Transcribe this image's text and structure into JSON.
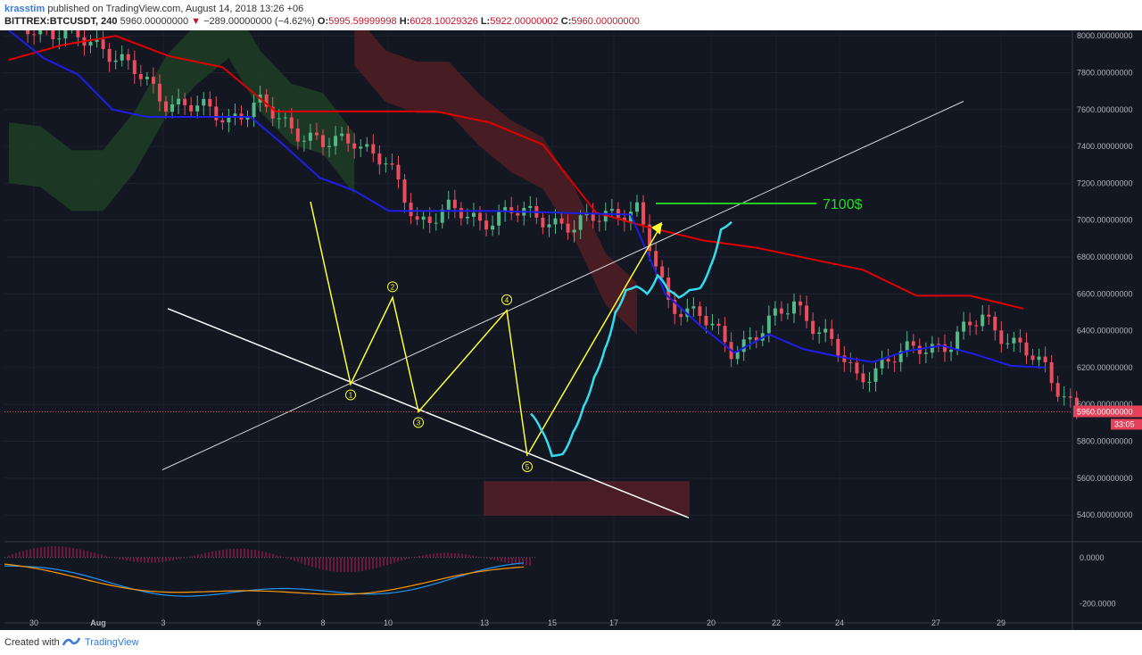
{
  "header": {
    "author": "krasstim",
    "published": "published on TradingView.com, August 14, 2018 13:26 +06",
    "symbol": "BITTREX:BTCUSDT, 240",
    "last": "5960.00000000",
    "change": "−289.00000000 (−4.62%)",
    "open_label": "O:",
    "open": "5995.59999998",
    "high_label": "H:",
    "high": "6028.10029326",
    "low_label": "L:",
    "low": "5922.00000002",
    "close_label": "C:",
    "close": "5960.00000000"
  },
  "footer": {
    "created_with": "Created with",
    "brand": "TradingView"
  },
  "colors": {
    "background": "#131722",
    "grid": "#1e2230",
    "bull": "#53b987",
    "bear": "#eb4d5c",
    "tenkan": "#1e1ee6",
    "kijun": "#e00000",
    "cloud_bull": "#1c3a26",
    "cloud_bear": "#4a1c24",
    "trend": "#ffffff",
    "wave": "#ffff33",
    "projection": "#33ddee",
    "target": "#22cc22",
    "last_price": "#e5415b"
  },
  "chart_data": [
    {
      "type": "candlestick",
      "title": "BITTREX:BTCUSDT, 240",
      "timeframe": "240",
      "ylim": [
        5260,
        8030
      ],
      "y_ticks": [
        "8000.00000000",
        "7800.00000000",
        "7600.00000000",
        "7400.00000000",
        "7200.00000000",
        "7000.00000000",
        "6800.00000000",
        "6600.00000000",
        "6400.00000000",
        "6200.00000000",
        "6000.00000000",
        "5800.00000000",
        "5600.00000000",
        "5400.00000000"
      ],
      "x_ticks": [
        "30",
        "Aug",
        "3",
        "6",
        "8",
        "10",
        "13",
        "15",
        "17",
        "20",
        "22",
        "24",
        "27",
        "29"
      ],
      "last_price_label": "5960.00000000",
      "countdown_label": "33:05",
      "close_path": [
        [
          0,
          8080
        ],
        [
          3,
          7950
        ],
        [
          5,
          7650
        ],
        [
          7,
          7560
        ],
        [
          8,
          7620
        ],
        [
          10,
          7400
        ],
        [
          11,
          7450
        ],
        [
          12,
          7300
        ],
        [
          13,
          7000
        ],
        [
          14,
          7050
        ],
        [
          15,
          7000
        ],
        [
          16,
          7040
        ],
        [
          17,
          7020
        ],
        [
          18,
          6950
        ],
        [
          19,
          7050
        ],
        [
          20,
          7040
        ],
        [
          21,
          6560
        ],
        [
          22,
          6480
        ],
        [
          23,
          6300
        ],
        [
          24,
          6400
        ],
        [
          25,
          6560
        ],
        [
          26,
          6360
        ],
        [
          27,
          6150
        ],
        [
          28,
          6230
        ],
        [
          29,
          6320
        ],
        [
          30,
          6320
        ],
        [
          31,
          6490
        ],
        [
          32,
          6320
        ],
        [
          33,
          6200
        ],
        [
          34,
          5960
        ]
      ],
      "tenkan_sen": [
        [
          0,
          8030
        ],
        [
          1,
          7880
        ],
        [
          2,
          7790
        ],
        [
          3,
          7600
        ],
        [
          4,
          7560
        ],
        [
          6,
          7560
        ],
        [
          7,
          7560
        ],
        [
          8,
          7400
        ],
        [
          9,
          7230
        ],
        [
          10,
          7160
        ],
        [
          11,
          7050
        ],
        [
          12,
          7050
        ],
        [
          14,
          7050
        ],
        [
          16,
          7040
        ],
        [
          18,
          7030
        ],
        [
          19,
          6600
        ],
        [
          20,
          6430
        ],
        [
          21,
          6280
        ],
        [
          22,
          6380
        ],
        [
          23,
          6300
        ],
        [
          24,
          6260
        ],
        [
          25,
          6230
        ],
        [
          26,
          6290
        ],
        [
          27,
          6320
        ],
        [
          28,
          6270
        ],
        [
          29,
          6210
        ],
        [
          30,
          6200
        ]
      ],
      "kijun_sen": [
        [
          0,
          7870
        ],
        [
          1,
          7950
        ],
        [
          2,
          8000
        ],
        [
          3,
          7890
        ],
        [
          4,
          7830
        ],
        [
          5,
          7590
        ],
        [
          6,
          7590
        ],
        [
          7,
          7590
        ],
        [
          8,
          7590
        ],
        [
          9,
          7530
        ],
        [
          10,
          7410
        ],
        [
          11,
          7040
        ],
        [
          12,
          6960
        ],
        [
          13,
          6890
        ],
        [
          14,
          6850
        ],
        [
          15,
          6790
        ],
        [
          16,
          6730
        ],
        [
          17,
          6590
        ],
        [
          18,
          6590
        ],
        [
          19,
          6520
        ]
      ],
      "cloud_bull": [
        [
          0,
          7200
        ],
        [
          1,
          7180
        ],
        [
          2,
          7050
        ],
        [
          3,
          7050
        ],
        [
          4,
          7260
        ],
        [
          5,
          7560
        ],
        [
          6,
          7740
        ],
        [
          7,
          7880
        ],
        [
          8,
          7590
        ],
        [
          9,
          7410
        ],
        [
          10,
          7360
        ],
        [
          11,
          7140
        ]
      ],
      "cloud_bear": [
        [
          11,
          7840
        ],
        [
          12,
          7640
        ],
        [
          13,
          7580
        ],
        [
          14,
          7580
        ],
        [
          15,
          7400
        ],
        [
          16,
          7260
        ],
        [
          17,
          7170
        ],
        [
          18,
          6900
        ],
        [
          19,
          6540
        ],
        [
          20,
          6380
        ]
      ],
      "elliott_waves": [
        {
          "label": "1",
          "value": 6110
        },
        {
          "label": "2",
          "value": 6580
        },
        {
          "label": "3",
          "value": 5960
        },
        {
          "label": "4",
          "value": 6510
        },
        {
          "label": "5",
          "value": 5720
        }
      ],
      "projection": [
        5950,
        5860,
        5720,
        5730,
        5850,
        5990,
        6150,
        6300,
        6500,
        6620,
        6640,
        6600,
        6700,
        6620,
        6580,
        6620,
        6630,
        6750,
        6950,
        6990
      ],
      "target_label": "7100$",
      "target_value": 7100,
      "support_zone": [
        5400,
        5580
      ]
    },
    {
      "type": "line",
      "title": "MACD",
      "y_ticks": [
        "0.0000",
        "-200.0000"
      ],
      "ylim": [
        -280,
        65
      ]
    }
  ]
}
